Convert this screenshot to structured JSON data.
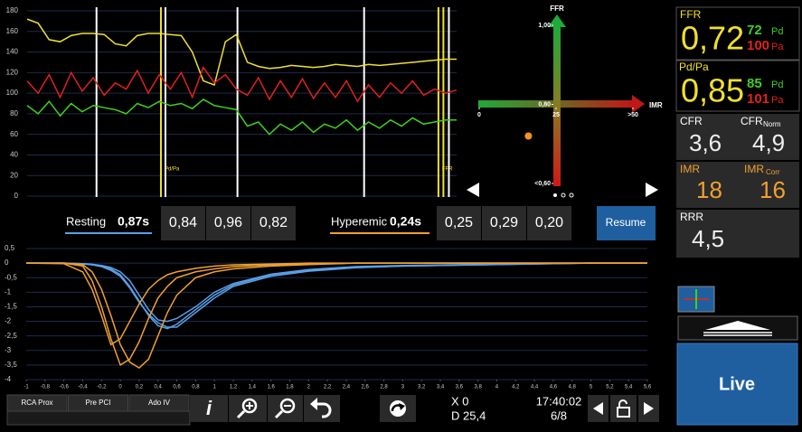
{
  "pressure_chart": {
    "type": "line",
    "ylim": [
      0,
      180
    ],
    "yticks": [
      0,
      20,
      40,
      60,
      80,
      100,
      120,
      140,
      160,
      180
    ],
    "series": [
      {
        "color": "#f0e030",
        "values": [
          172,
          168,
          152,
          150,
          156,
          158,
          158,
          157,
          148,
          146,
          156,
          158,
          158,
          157,
          156,
          140,
          112,
          108,
          150,
          157,
          130,
          126,
          124,
          125,
          127,
          126,
          125,
          126,
          128,
          127,
          126,
          128,
          127,
          128,
          129,
          130,
          131,
          132,
          133,
          133
        ]
      },
      {
        "color": "#e02020",
        "values": [
          112,
          100,
          118,
          96,
          120,
          102,
          115,
          98,
          110,
          104,
          122,
          100,
          118,
          104,
          120,
          96,
          125,
          110,
          118,
          104,
          98,
          115,
          94,
          112,
          96,
          114,
          95,
          110,
          96,
          112,
          92,
          108,
          96,
          110,
          100,
          112,
          98,
          104,
          100,
          103
        ]
      },
      {
        "color": "#40d020",
        "values": [
          88,
          80,
          92,
          78,
          90,
          82,
          88,
          86,
          84,
          80,
          90,
          86,
          92,
          88,
          90,
          85,
          94,
          88,
          86,
          84,
          68,
          72,
          60,
          70,
          64,
          72,
          62,
          70,
          66,
          74,
          64,
          72,
          66,
          74,
          68,
          76,
          70,
          72,
          74,
          74
        ]
      }
    ],
    "events": [
      {
        "x": 6.3,
        "color": "#ffffff"
      },
      {
        "x": 12.15,
        "color": "#f0e030",
        "label": "Pd/Pa"
      },
      {
        "x": 12.56,
        "color": "#ffffff"
      },
      {
        "x": 19.1,
        "color": "#ffffff"
      },
      {
        "x": 30.6,
        "color": "#ffffff"
      },
      {
        "x": 37.35,
        "color": "#f0e030",
        "label": "FFR"
      },
      {
        "x": 37.8,
        "color": "#f0e030"
      },
      {
        "x": 38.3,
        "color": "#ffffff"
      }
    ]
  },
  "ffr_imr_chart": {
    "type": "scatter",
    "y_label": "FFR",
    "x_label": "IMR",
    "ylim": [
      0.6,
      1.0
    ],
    "yticks": [
      {
        "value": 1.0,
        "label": "1,00"
      },
      {
        "value": 0.8,
        "label": "0,80"
      },
      {
        "value": 0.6,
        "label": "<0,60"
      }
    ],
    "xlim": [
      0,
      50
    ],
    "xticks": [
      0,
      25,
      {
        "value": 50,
        "label": ">50"
      }
    ],
    "points": [
      {
        "x": 16,
        "y": 0.72,
        "color": "#f7931e"
      }
    ]
  },
  "measurements": {
    "resting": {
      "label": "Resting",
      "mean": "0,87s",
      "values": [
        "0,84",
        "0,96",
        "0,82"
      ]
    },
    "hyperemic": {
      "label": "Hyperemic",
      "mean": "0,24s",
      "values": [
        "0,25",
        "0,29",
        "0,20"
      ]
    },
    "resume": "Resume"
  },
  "thermo_chart": {
    "type": "line",
    "xlim": [
      -1,
      5.6
    ],
    "ylim": [
      -4,
      0.5
    ],
    "xticks": [
      -1,
      {
        "value": -0.8,
        "label": "-0,8"
      },
      {
        "value": -0.6,
        "label": "-0,6"
      },
      {
        "value": -0.4,
        "label": "-0,4"
      },
      {
        "value": -0.2,
        "label": "-0,2"
      },
      0,
      {
        "value": 0.2,
        "label": "0,2"
      },
      {
        "value": 0.4,
        "label": "0,4"
      },
      {
        "value": 0.6,
        "label": "0,6"
      },
      {
        "value": 0.8,
        "label": "0,8"
      },
      1,
      {
        "value": 1.2,
        "label": "1,2"
      },
      {
        "value": 1.4,
        "label": "1,4"
      },
      {
        "value": 1.6,
        "label": "1,6"
      },
      {
        "value": 1.8,
        "label": "1,8"
      },
      2,
      {
        "value": 2.2,
        "label": "2,2"
      },
      {
        "value": 2.4,
        "label": "2,4"
      },
      {
        "value": 2.6,
        "label": "2,6"
      },
      {
        "value": 2.8,
        "label": "2,8"
      },
      3,
      {
        "value": 3.2,
        "label": "3,2"
      },
      {
        "value": 3.4,
        "label": "3,4"
      },
      {
        "value": 3.6,
        "label": "3,6"
      },
      {
        "value": 3.8,
        "label": "3,8"
      },
      4,
      {
        "value": 4.2,
        "label": "4,2"
      },
      {
        "value": 4.4,
        "label": "4,4"
      },
      {
        "value": 4.6,
        "label": "4,6"
      },
      {
        "value": 4.8,
        "label": "4,8"
      },
      5,
      {
        "value": 5.2,
        "label": "5,2"
      },
      {
        "value": 5.4,
        "label": "5,4"
      },
      {
        "value": 5.6,
        "label": "5,6"
      }
    ],
    "yticks": [
      {
        "value": 0.5,
        "label": "0,5"
      },
      0,
      {
        "value": -0.5,
        "label": "-0,5"
      },
      -1,
      {
        "value": -1.5,
        "label": "-1,5"
      },
      -2,
      {
        "value": -2.5,
        "label": "-2,5"
      },
      -3,
      {
        "value": -3.5,
        "label": "-3,5"
      },
      -4
    ],
    "x": [
      -1,
      -0.6,
      -0.4,
      -0.3,
      -0.2,
      -0.1,
      0,
      0.1,
      0.2,
      0.3,
      0.4,
      0.5,
      0.6,
      0.8,
      1,
      1.2,
      1.6,
      2,
      2.5,
      3,
      4,
      5,
      5.6
    ],
    "series": [
      {
        "color": "#5aa0e8",
        "values": [
          0,
          0,
          -0.02,
          -0.05,
          -0.1,
          -0.2,
          -0.4,
          -0.8,
          -1.3,
          -1.8,
          -2.15,
          -2.25,
          -2.1,
          -1.6,
          -1.1,
          -0.75,
          -0.4,
          -0.25,
          -0.15,
          -0.1,
          -0.05,
          0,
          0
        ]
      },
      {
        "color": "#5aa0e8",
        "values": [
          0,
          0,
          -0.03,
          -0.06,
          -0.12,
          -0.25,
          -0.45,
          -0.85,
          -1.35,
          -1.75,
          -2.05,
          -2.2,
          -2.2,
          -1.7,
          -1.2,
          -0.8,
          -0.45,
          -0.28,
          -0.16,
          -0.1,
          -0.05,
          0,
          0
        ]
      },
      {
        "color": "#5aa0e8",
        "values": [
          0,
          0,
          -0.02,
          -0.04,
          -0.08,
          -0.15,
          -0.3,
          -0.6,
          -1.1,
          -1.6,
          -1.95,
          -2.0,
          -1.9,
          -1.5,
          -1.0,
          -0.7,
          -0.38,
          -0.22,
          -0.12,
          -0.08,
          -0.04,
          0,
          0
        ]
      },
      {
        "color": "#f0a030",
        "values": [
          0,
          0,
          -0.05,
          -0.3,
          -0.9,
          -1.8,
          -2.8,
          -3.4,
          -3.6,
          -3.3,
          -2.5,
          -1.7,
          -1.1,
          -0.5,
          -0.3,
          -0.2,
          -0.1,
          -0.05,
          0,
          0,
          0,
          0,
          0
        ]
      },
      {
        "color": "#f0a030",
        "values": [
          0,
          0,
          -0.1,
          -0.6,
          -1.5,
          -2.6,
          -3.5,
          -3.3,
          -2.7,
          -1.9,
          -1.2,
          -0.8,
          -0.5,
          -0.3,
          -0.2,
          -0.12,
          -0.06,
          -0.03,
          0,
          0,
          0,
          0,
          0
        ]
      },
      {
        "color": "#f0a030",
        "values": [
          0,
          -0.02,
          -0.3,
          -0.9,
          -1.8,
          -2.8,
          -2.6,
          -2.0,
          -1.4,
          -0.9,
          -0.6,
          -0.4,
          -0.3,
          -0.18,
          -0.1,
          -0.06,
          -0.03,
          0,
          0,
          0,
          0,
          0,
          0
        ]
      }
    ]
  },
  "side_panel": {
    "ffr": {
      "label": "FFR",
      "value": "0,72",
      "pd_value": "72",
      "pd_label": "Pd",
      "pa_value": "100",
      "pa_label": "Pa"
    },
    "pdpa": {
      "label": "Pd/Pa",
      "value": "0,85",
      "pd_value": "85",
      "pd_label": "Pd",
      "pa_value": "101",
      "pa_label": "Pa"
    },
    "cfr": {
      "label": "CFR",
      "value": "3,6"
    },
    "cfr_norm": {
      "label": "CFR",
      "sub": "Norm",
      "value": "4,9"
    },
    "imr": {
      "label": "IMR",
      "value": "18"
    },
    "imr_corr": {
      "label": "IMR",
      "sub": "Corr",
      "value": "16"
    },
    "rrr": {
      "label": "RRR",
      "value": "4,5"
    },
    "live": "Live"
  },
  "toolbar": {
    "tabs": [
      "RCA Prox",
      "Pre PCI",
      "Ado IV"
    ],
    "info": "i",
    "cursor_x": "X 0",
    "cursor_d": "D 25,4",
    "time": "17:40:02",
    "page": "6/8"
  }
}
